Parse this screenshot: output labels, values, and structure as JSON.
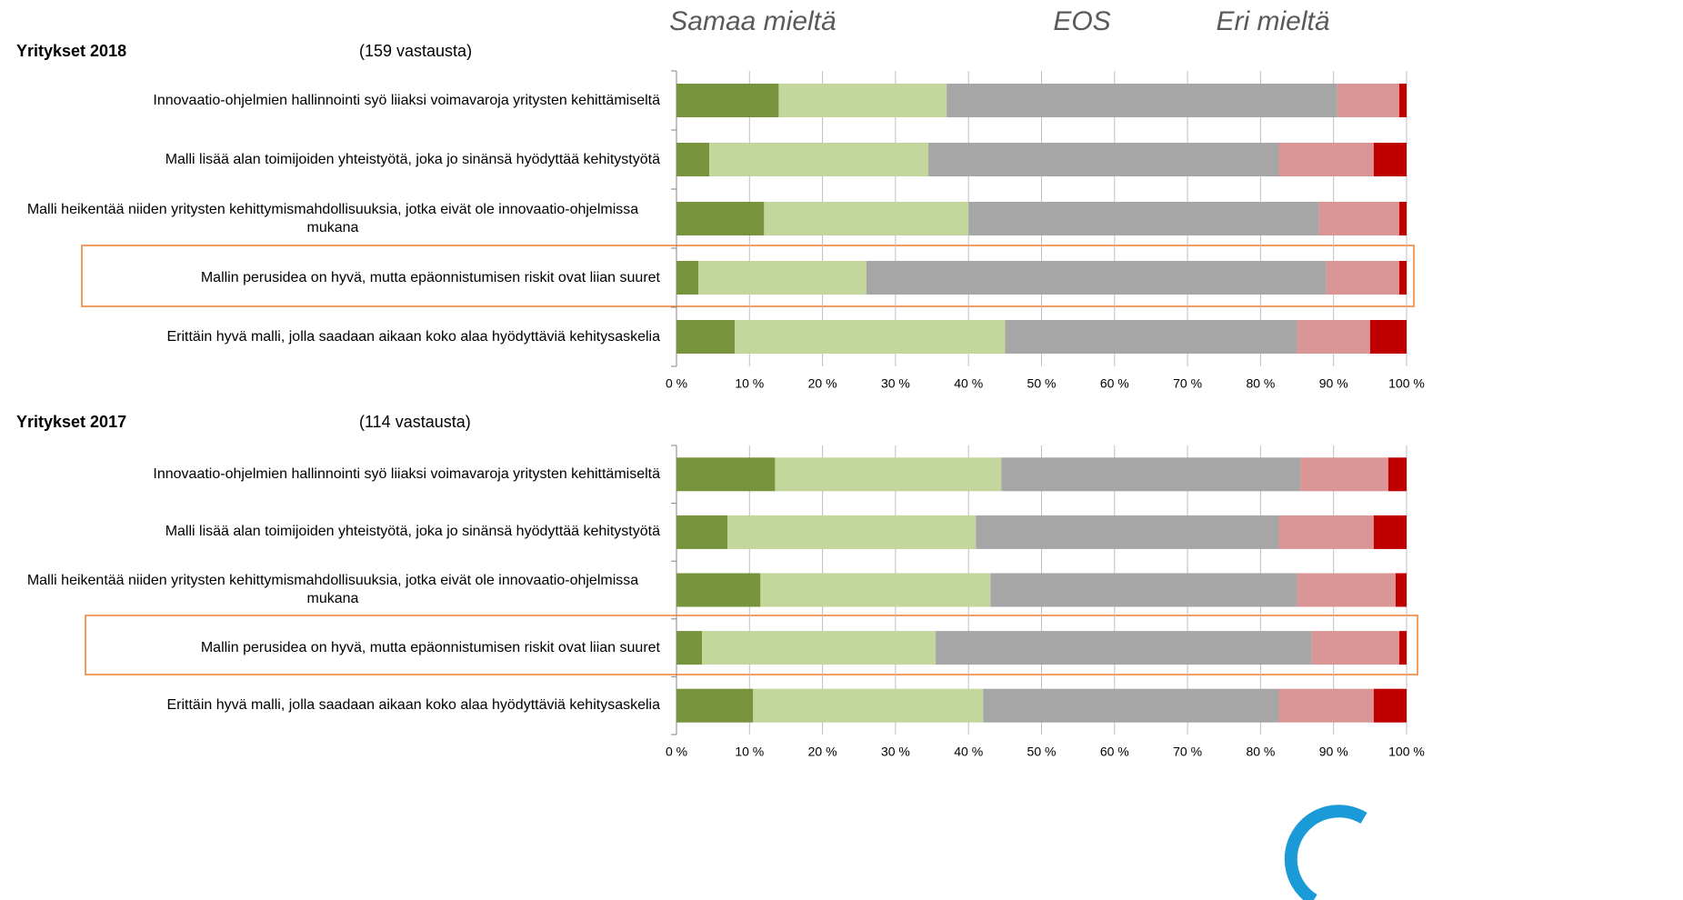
{
  "chart_data": [
    {
      "type": "stacked-barh",
      "title": "Yritykset 2018",
      "subtitle": "(159 vastausta)",
      "annotations": [
        "Samaa mieltä",
        "EOS",
        "Eri mieltä"
      ],
      "categories": [
        "Innovaatio-ohjelmien hallinnointi syö liiaksi voimavaroja yritysten kehittämiseltä",
        "Malli lisää alan toimijoiden yhteistyötä, joka jo sinänsä hyödyttää kehitystyötä",
        "Malli heikentää niiden yritysten kehittymismahdollisuuksia, jotka eivät ole innovaatio-ohjelmissa mukana",
        "Mallin perusidea on hyvä, mutta epäonnistumisen riskit ovat liian suuret",
        "Erittäin hyvä malli, jolla saadaan aikaan koko alaa hyödyttäviä kehitysaskelia"
      ],
      "series": [
        {
          "color": "#77933c",
          "values": [
            14,
            4.5,
            12,
            3,
            8
          ]
        },
        {
          "color": "#c3d69b",
          "values": [
            23,
            30,
            28,
            23,
            37
          ]
        },
        {
          "color": "#a6a6a6",
          "values": [
            53.5,
            48,
            48,
            63,
            40
          ]
        },
        {
          "color": "#d99694",
          "values": [
            8.5,
            13,
            11,
            10,
            10
          ]
        },
        {
          "color": "#c00000",
          "values": [
            1,
            4.5,
            1,
            1,
            5
          ]
        }
      ],
      "xlim": [
        0,
        100
      ],
      "xticks": [
        {
          "value": 0,
          "label": "0 %"
        },
        {
          "value": 10,
          "label": "10 %"
        },
        {
          "value": 20,
          "label": "20 %"
        },
        {
          "value": 30,
          "label": "30 %"
        },
        {
          "value": 40,
          "label": "40 %"
        },
        {
          "value": 50,
          "label": "50 %"
        },
        {
          "value": 60,
          "label": "60 %"
        },
        {
          "value": 70,
          "label": "70 %"
        },
        {
          "value": 80,
          "label": "80 %"
        },
        {
          "value": 90,
          "label": "90 %"
        },
        {
          "value": 100,
          "label": "100 %"
        }
      ],
      "grid": true
    },
    {
      "type": "stacked-barh",
      "title": "Yritykset 2017",
      "subtitle": "(114 vastausta)",
      "categories": [
        "Innovaatio-ohjelmien hallinnointi syö liiaksi voimavaroja yritysten kehittämiseltä",
        "Malli lisää alan toimijoiden yhteistyötä, joka jo sinänsä hyödyttää kehitystyötä",
        "Malli heikentää niiden yritysten kehittymismahdollisuuksia, jotka eivät ole innovaatio-ohjelmissa mukana",
        "Mallin perusidea on hyvä, mutta epäonnistumisen riskit ovat liian suuret",
        "Erittäin hyvä malli, jolla saadaan aikaan koko alaa hyödyttäviä kehitysaskelia"
      ],
      "series": [
        {
          "color": "#77933c",
          "values": [
            13.5,
            7,
            11.5,
            3.5,
            10.5
          ]
        },
        {
          "color": "#c3d69b",
          "values": [
            31,
            34,
            31.5,
            32,
            31.5
          ]
        },
        {
          "color": "#a6a6a6",
          "values": [
            41,
            41.5,
            42,
            51.5,
            40.5
          ]
        },
        {
          "color": "#d99694",
          "values": [
            12,
            13,
            13.5,
            12,
            13
          ]
        },
        {
          "color": "#c00000",
          "values": [
            2.5,
            4.5,
            1.5,
            1,
            4.5
          ]
        }
      ],
      "xlim": [
        0,
        100
      ],
      "xticks": [
        {
          "value": 0,
          "label": "0 %"
        },
        {
          "value": 10,
          "label": "10 %"
        },
        {
          "value": 20,
          "label": "20 %"
        },
        {
          "value": 30,
          "label": "30 %"
        },
        {
          "value": 40,
          "label": "40 %"
        },
        {
          "value": 50,
          "label": "50 %"
        },
        {
          "value": 60,
          "label": "60 %"
        },
        {
          "value": 70,
          "label": "70 %"
        },
        {
          "value": 80,
          "label": "80 %"
        },
        {
          "value": 90,
          "label": "90 %"
        },
        {
          "value": 100,
          "label": "100 %"
        }
      ],
      "grid": true
    }
  ]
}
